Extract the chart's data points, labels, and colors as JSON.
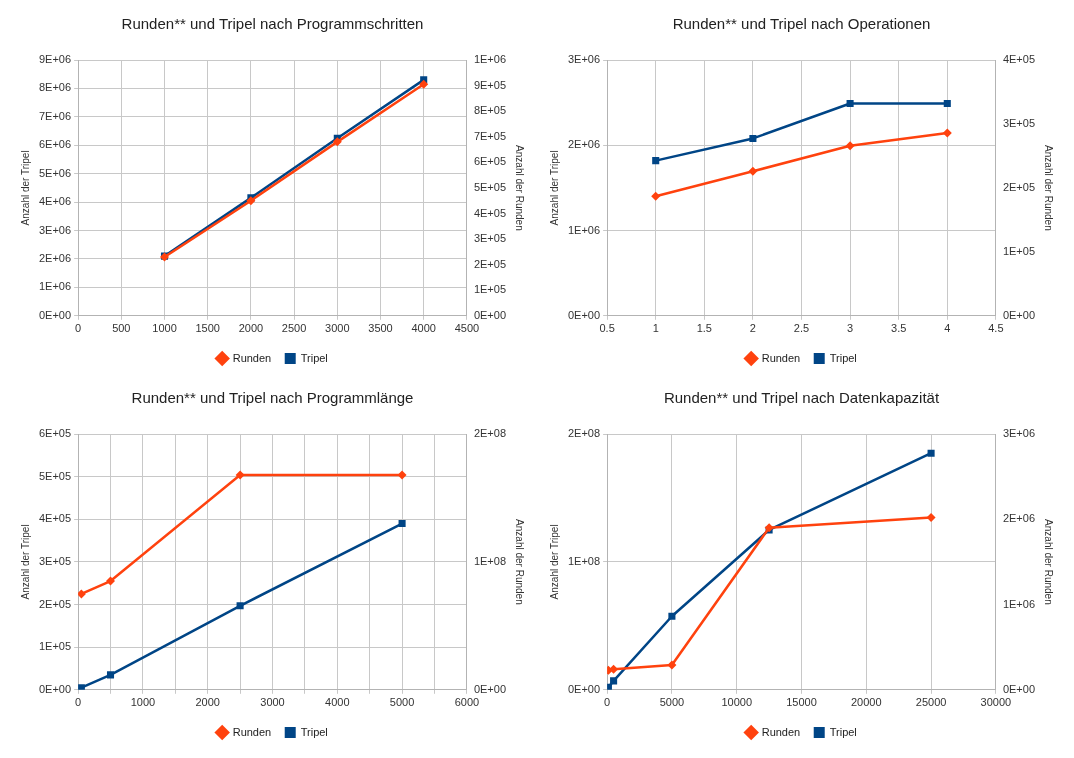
{
  "chart_data": [
    {
      "type": "line",
      "title": "Runden** und Tripel nach Programmschritten",
      "ylabel": "Anzahl der Tripel",
      "y2label": "Anzahl der Runden",
      "x": [
        1000,
        2000,
        3000,
        4000
      ],
      "series": [
        {
          "name": "Tripel",
          "color": "#004586",
          "marker": "square",
          "values": [
            2100000,
            4150000,
            6250000,
            8300000
          ]
        },
        {
          "name": "Runden",
          "color": "#ff420e",
          "marker": "diamond",
          "axis": "y2",
          "values": [
            230000,
            450000,
            680000,
            905000
          ]
        }
      ],
      "xlim": [
        0,
        4500
      ],
      "xticks": [
        0,
        500,
        1000,
        1500,
        2000,
        2500,
        3000,
        3500,
        4000,
        4500
      ],
      "ylim": [
        0,
        9000000
      ],
      "yticks": [
        {
          "value": 0,
          "label": "0E+00"
        },
        {
          "value": 1000000,
          "label": "1E+06"
        },
        {
          "value": 2000000,
          "label": "2E+06"
        },
        {
          "value": 3000000,
          "label": "3E+06"
        },
        {
          "value": 4000000,
          "label": "4E+06"
        },
        {
          "value": 5000000,
          "label": "5E+06"
        },
        {
          "value": 6000000,
          "label": "6E+06"
        },
        {
          "value": 7000000,
          "label": "7E+06"
        },
        {
          "value": 8000000,
          "label": "8E+06"
        },
        {
          "value": 9000000,
          "label": "9E+06"
        }
      ],
      "y2lim": [
        0,
        1000000
      ],
      "y2ticks": [
        {
          "value": 0,
          "label": "0E+00"
        },
        {
          "value": 100000,
          "label": "1E+05"
        },
        {
          "value": 200000,
          "label": "2E+05"
        },
        {
          "value": 300000,
          "label": "3E+05"
        },
        {
          "value": 400000,
          "label": "4E+05"
        },
        {
          "value": 500000,
          "label": "5E+05"
        },
        {
          "value": 600000,
          "label": "6E+05"
        },
        {
          "value": 700000,
          "label": "7E+05"
        },
        {
          "value": 800000,
          "label": "8E+05"
        },
        {
          "value": 900000,
          "label": "9E+05"
        },
        {
          "value": 1000000,
          "label": "1E+06"
        }
      ],
      "grid": true,
      "legend": "bottom",
      "line_style": "solid"
    },
    {
      "type": "line",
      "title": "Runden** und Tripel nach Operationen",
      "ylabel": "Anzahl der Tripel",
      "y2label": "Anzahl der Runden",
      "x": [
        1,
        2,
        3,
        4
      ],
      "series": [
        {
          "name": "Tripel",
          "color": "#004586",
          "marker": "square",
          "values": [
            1820000,
            2080000,
            2490000,
            2490000
          ]
        },
        {
          "name": "Runden",
          "color": "#ff420e",
          "marker": "diamond",
          "axis": "y2",
          "values": [
            187000,
            226000,
            266000,
            286000
          ]
        }
      ],
      "xlim": [
        0.5,
        4.5
      ],
      "xticks": [
        0.5,
        1,
        1.5,
        2,
        2.5,
        3,
        3.5,
        4,
        4.5
      ],
      "ylim": [
        0,
        3000000
      ],
      "yticks": [
        {
          "value": 0,
          "label": "0E+00"
        },
        {
          "value": 1000000,
          "label": "1E+06"
        },
        {
          "value": 2000000,
          "label": "2E+06"
        },
        {
          "value": 3000000,
          "label": "3E+06"
        }
      ],
      "y2lim": [
        0,
        400000
      ],
      "y2ticks": [
        {
          "value": 0,
          "label": "0E+00"
        },
        {
          "value": 100000,
          "label": "1E+05"
        },
        {
          "value": 200000,
          "label": "2E+05"
        },
        {
          "value": 300000,
          "label": "3E+05"
        },
        {
          "value": 400000,
          "label": "4E+05"
        }
      ],
      "grid": true,
      "legend": "bottom",
      "line_style": "solid"
    },
    {
      "type": "line",
      "title": "Runden** und Tripel nach Programmlänge",
      "ylabel": "Anzahl der Tripel",
      "y2label": "Anzahl der Runden",
      "x": [
        50,
        500,
        2500,
        5000
      ],
      "series": [
        {
          "name": "Tripel",
          "color": "#004586",
          "marker": "square",
          "values": [
            5000,
            35000,
            197000,
            390000
          ]
        },
        {
          "name": "Runden",
          "color": "#ff420e",
          "marker": "diamond",
          "axis": "y2",
          "values": [
            75000000,
            85000000,
            168000000,
            168000000
          ]
        }
      ],
      "xlim": [
        0,
        6000
      ],
      "xticks": [
        0,
        {
          "value": 500,
          "label": null
        },
        1000,
        {
          "value": 1500,
          "label": null
        },
        2000,
        {
          "value": 2500,
          "label": null
        },
        3000,
        {
          "value": 3500,
          "label": null
        },
        4000,
        {
          "value": 4500,
          "label": null
        },
        5000,
        {
          "value": 5500,
          "label": null
        },
        6000
      ],
      "ylim": [
        0,
        600000
      ],
      "yticks": [
        {
          "value": 0,
          "label": "0E+00"
        },
        {
          "value": 100000,
          "label": "1E+05"
        },
        {
          "value": 200000,
          "label": "2E+05"
        },
        {
          "value": 300000,
          "label": "3E+05"
        },
        {
          "value": 400000,
          "label": "4E+05"
        },
        {
          "value": 500000,
          "label": "5E+05"
        },
        {
          "value": 600000,
          "label": "6E+05"
        }
      ],
      "y2lim": [
        0,
        200000000
      ],
      "y2ticks": [
        {
          "value": 0,
          "label": "0E+00"
        },
        {
          "value": 100000000,
          "label": "1E+08"
        },
        {
          "value": 200000000,
          "label": "2E+08"
        }
      ],
      "grid": true,
      "legend": "bottom",
      "line_style": "solid"
    },
    {
      "type": "line",
      "title": "Runden** und Tripel nach Datenkapazität",
      "ylabel": "Anzahl der Tripel",
      "y2label": "Anzahl der Runden",
      "x": [
        100,
        500,
        5000,
        12500,
        25000
      ],
      "series": [
        {
          "name": "Tripel",
          "color": "#004586",
          "marker": "square",
          "values": [
            2000000,
            7000000,
            57500000,
            125000000,
            185000000
          ]
        },
        {
          "name": "Runden",
          "color": "#ff420e",
          "marker": "diamond",
          "axis": "y2",
          "values": [
            230000,
            240000,
            290000,
            1900000,
            2020000
          ]
        }
      ],
      "xlim": [
        0,
        30000
      ],
      "xticks": [
        0,
        5000,
        10000,
        15000,
        20000,
        25000,
        30000
      ],
      "ylim": [
        0,
        200000000
      ],
      "yticks": [
        {
          "value": 0,
          "label": "0E+00"
        },
        {
          "value": 100000000,
          "label": "1E+08"
        },
        {
          "value": 200000000,
          "label": "2E+08"
        }
      ],
      "y2lim": [
        0,
        3000000
      ],
      "y2ticks": [
        {
          "value": 0,
          "label": "0E+00"
        },
        {
          "value": 1000000,
          "label": "1E+06"
        },
        {
          "value": 2000000,
          "label": "2E+06"
        },
        {
          "value": 3000000,
          "label": "3E+06"
        }
      ],
      "grid": true,
      "legend": "bottom",
      "line_style": "solid"
    }
  ]
}
